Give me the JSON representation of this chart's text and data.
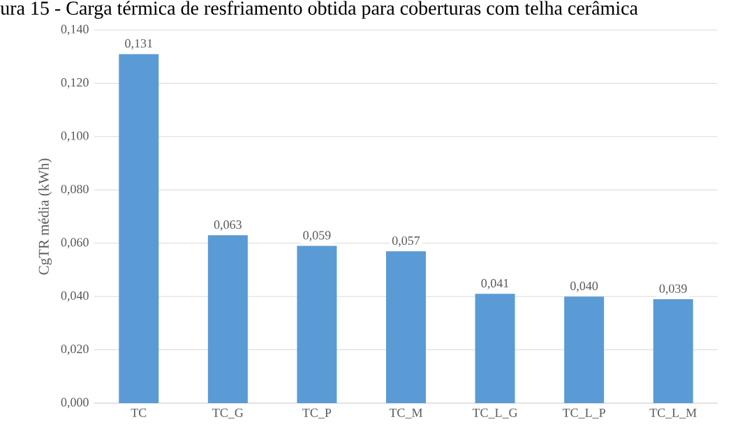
{
  "chart_data": {
    "type": "bar",
    "title": "ura 15 - Carga térmica de resfriamento obtida para coberturas com telha cerâmica",
    "ylabel": "CgTR média (kWh)",
    "categories": [
      "TC",
      "TC_G",
      "TC_P",
      "TC_M",
      "TC_L_G",
      "TC_L_P",
      "TC_L_M"
    ],
    "values": [
      0.131,
      0.063,
      0.059,
      0.057,
      0.041,
      0.04,
      0.039
    ],
    "value_labels": [
      "0,131",
      "0,063",
      "0,059",
      "0,057",
      "0,041",
      "0,040",
      "0,039"
    ],
    "color": "#5b9bd5",
    "ylim": [
      0,
      0.14
    ],
    "yticks": [
      {
        "value": 0,
        "label": "0,000"
      },
      {
        "value": 0.02,
        "label": "0,020"
      },
      {
        "value": 0.04,
        "label": "0,040"
      },
      {
        "value": 0.06,
        "label": "0,060"
      },
      {
        "value": 0.08,
        "label": "0,080"
      },
      {
        "value": 0.1,
        "label": "0,100"
      },
      {
        "value": 0.12,
        "label": "0,120"
      },
      {
        "value": 0.14,
        "label": "0,140"
      }
    ],
    "grid": "y"
  }
}
